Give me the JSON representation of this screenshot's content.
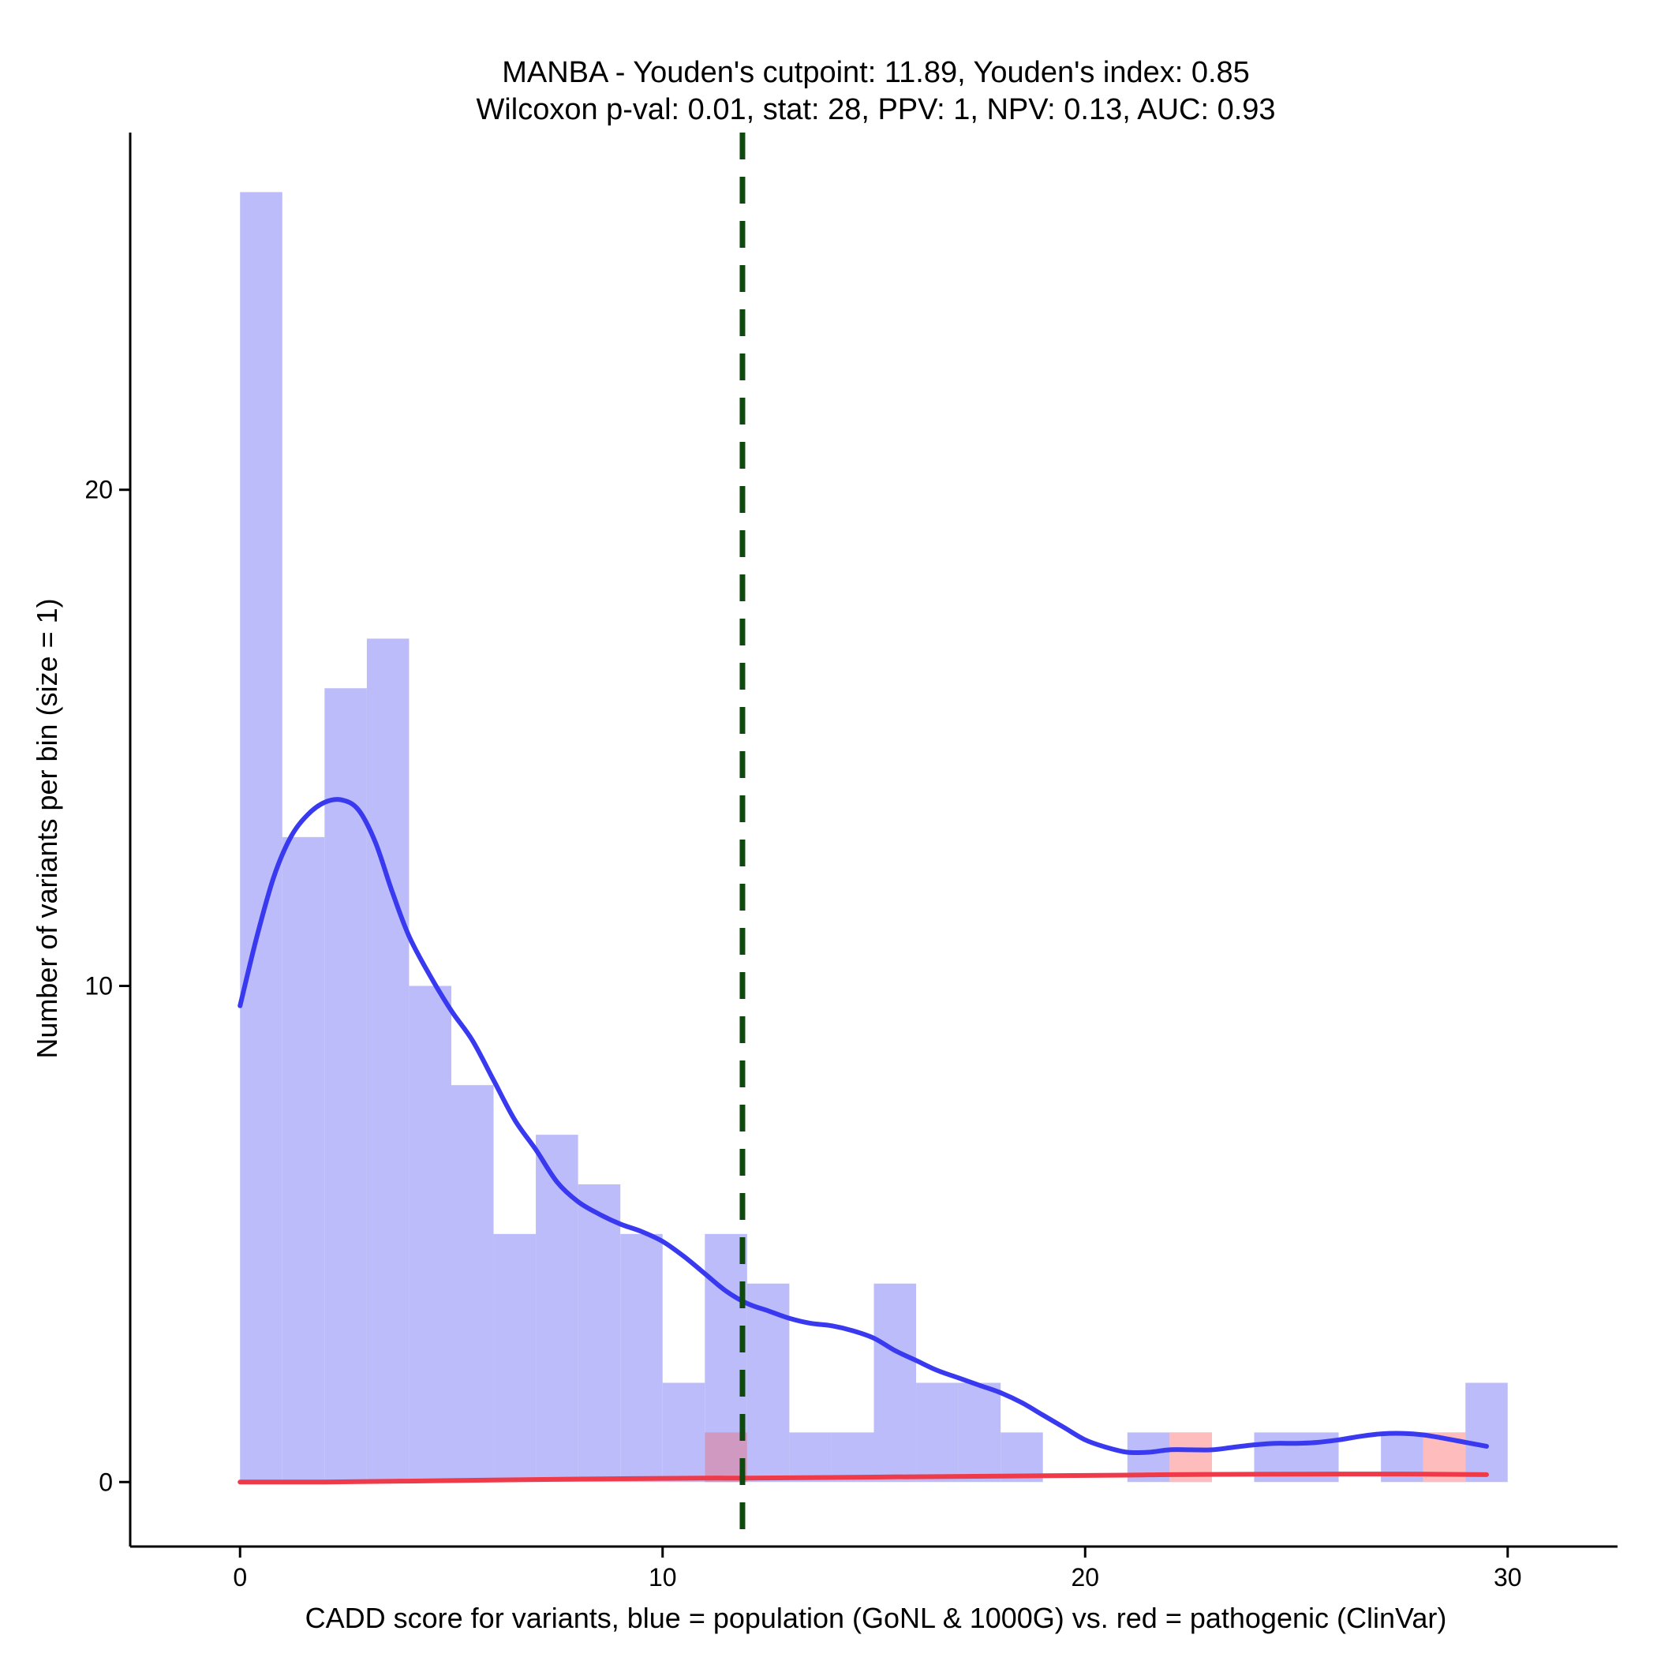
{
  "chart_data": {
    "type": "histogram",
    "title_line1": "MANBA - Youden's cutpoint: 11.89, Youden's index: 0.85",
    "title_line2": "Wilcoxon p-val: 0.01, stat: 28, PPV: 1, NPV: 0.13, AUC: 0.93",
    "xlabel": "CADD score for variants, blue = population (GoNL & 1000G) vs. red = pathogenic (ClinVar)",
    "ylabel": "Number of variants per bin (size = 1)",
    "xlim": [
      -2.6,
      32.6
    ],
    "ylim": [
      -1.3,
      27.2
    ],
    "x_ticks": [
      0,
      10,
      20,
      30
    ],
    "x_tick_labels": [
      "0",
      "10",
      "20",
      "30"
    ],
    "y_ticks": [
      0,
      10,
      20
    ],
    "y_tick_labels": [
      "0",
      "10",
      "20"
    ],
    "bin_width": 1,
    "cutpoint": 11.89,
    "colors": {
      "population_bar": "#bcbcfa",
      "pathogenic_bar": "#ffbcbc",
      "overlap_bar": "#cf99c2",
      "population_density": "#3939f0",
      "pathogenic_density": "#ef3a49",
      "cutpoint_line": "#0e4a0e"
    },
    "series": [
      {
        "name": "population (GoNL & 1000G)",
        "bins": [
          {
            "x": 0,
            "count": 26
          },
          {
            "x": 1,
            "count": 13
          },
          {
            "x": 2,
            "count": 16
          },
          {
            "x": 3,
            "count": 17
          },
          {
            "x": 4,
            "count": 10
          },
          {
            "x": 5,
            "count": 8
          },
          {
            "x": 6,
            "count": 5
          },
          {
            "x": 7,
            "count": 7
          },
          {
            "x": 8,
            "count": 6
          },
          {
            "x": 9,
            "count": 5
          },
          {
            "x": 10,
            "count": 2
          },
          {
            "x": 11,
            "count": 5
          },
          {
            "x": 12,
            "count": 4
          },
          {
            "x": 13,
            "count": 1
          },
          {
            "x": 14,
            "count": 1
          },
          {
            "x": 15,
            "count": 4
          },
          {
            "x": 16,
            "count": 2
          },
          {
            "x": 17,
            "count": 2
          },
          {
            "x": 18,
            "count": 1
          },
          {
            "x": 21,
            "count": 1
          },
          {
            "x": 22,
            "count": 1
          },
          {
            "x": 24,
            "count": 1
          },
          {
            "x": 25,
            "count": 1
          },
          {
            "x": 27,
            "count": 1
          },
          {
            "x": 28,
            "count": 1
          },
          {
            "x": 29,
            "count": 2
          }
        ],
        "density_curve": [
          [
            0,
            9.6
          ],
          [
            0.4,
            11.0
          ],
          [
            0.8,
            12.2
          ],
          [
            1.2,
            13.0
          ],
          [
            1.6,
            13.45
          ],
          [
            2.0,
            13.7
          ],
          [
            2.4,
            13.75
          ],
          [
            2.8,
            13.55
          ],
          [
            3.2,
            12.9
          ],
          [
            3.6,
            11.9
          ],
          [
            4.0,
            11.0
          ],
          [
            4.5,
            10.2
          ],
          [
            5.0,
            9.5
          ],
          [
            5.5,
            8.9
          ],
          [
            6.0,
            8.1
          ],
          [
            6.5,
            7.3
          ],
          [
            7.0,
            6.7
          ],
          [
            7.5,
            6.05
          ],
          [
            8.0,
            5.65
          ],
          [
            8.5,
            5.4
          ],
          [
            9.0,
            5.2
          ],
          [
            9.5,
            5.05
          ],
          [
            10.0,
            4.85
          ],
          [
            10.5,
            4.55
          ],
          [
            11.0,
            4.2
          ],
          [
            11.5,
            3.85
          ],
          [
            12.0,
            3.6
          ],
          [
            12.5,
            3.45
          ],
          [
            13.0,
            3.3
          ],
          [
            13.5,
            3.2
          ],
          [
            14.0,
            3.15
          ],
          [
            14.5,
            3.05
          ],
          [
            15.0,
            2.9
          ],
          [
            15.5,
            2.65
          ],
          [
            16.0,
            2.45
          ],
          [
            16.5,
            2.25
          ],
          [
            17.0,
            2.1
          ],
          [
            17.5,
            1.95
          ],
          [
            18.0,
            1.8
          ],
          [
            18.5,
            1.6
          ],
          [
            19.0,
            1.35
          ],
          [
            19.5,
            1.1
          ],
          [
            20.0,
            0.85
          ],
          [
            20.5,
            0.7
          ],
          [
            21.0,
            0.6
          ],
          [
            21.5,
            0.6
          ],
          [
            22.0,
            0.65
          ],
          [
            22.5,
            0.65
          ],
          [
            23.0,
            0.65
          ],
          [
            23.5,
            0.7
          ],
          [
            24.0,
            0.75
          ],
          [
            24.5,
            0.78
          ],
          [
            25.0,
            0.78
          ],
          [
            25.5,
            0.8
          ],
          [
            26.0,
            0.85
          ],
          [
            26.5,
            0.92
          ],
          [
            27.0,
            0.97
          ],
          [
            27.5,
            0.98
          ],
          [
            28.0,
            0.95
          ],
          [
            28.5,
            0.88
          ],
          [
            29.0,
            0.8
          ],
          [
            29.5,
            0.72
          ]
        ]
      },
      {
        "name": "pathogenic (ClinVar)",
        "bins": [
          {
            "x": 11,
            "count": 1
          },
          {
            "x": 22,
            "count": 1
          },
          {
            "x": 28,
            "count": 1
          }
        ],
        "density_curve": [
          [
            0,
            0.0
          ],
          [
            2,
            0.0
          ],
          [
            5,
            0.03
          ],
          [
            8,
            0.06
          ],
          [
            11,
            0.08
          ],
          [
            12,
            0.08
          ],
          [
            15,
            0.1
          ],
          [
            18,
            0.12
          ],
          [
            21,
            0.14
          ],
          [
            22,
            0.15
          ],
          [
            25,
            0.16
          ],
          [
            28,
            0.16
          ],
          [
            29.5,
            0.15
          ]
        ]
      }
    ]
  }
}
